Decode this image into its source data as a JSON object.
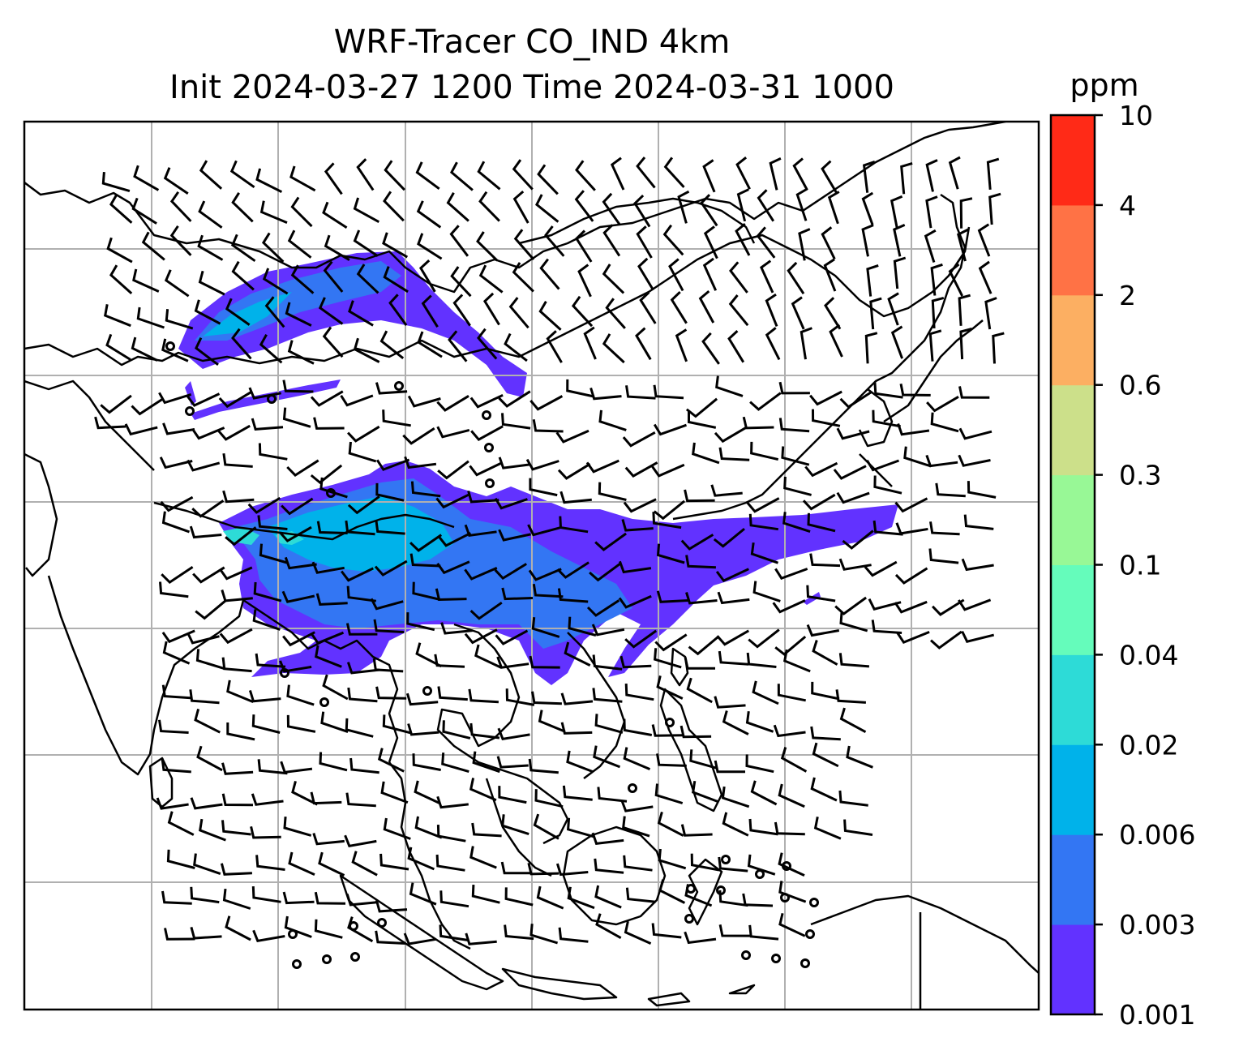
{
  "title": {
    "line1": "WRF-Tracer CO_IND 4km",
    "line2": "Init 2024-03-27 1200 Time 2024-03-31 1000"
  },
  "colorbar": {
    "unit_label": "ppm",
    "levels": [
      "0.001",
      "0.003",
      "0.006",
      "0.02",
      "0.04",
      "0.1",
      "0.3",
      "0.6",
      "2",
      "4",
      "10"
    ],
    "colors": [
      "#6232FF",
      "#3376F3",
      "#00B2EA",
      "#2DDBD7",
      "#65FCBB",
      "#98F896",
      "#CCE08A",
      "#FCAF62",
      "#FF7245",
      "#FF2A17"
    ]
  },
  "map": {
    "plume_colors": {
      "outer": "#6232FF",
      "mid": "#3376F3",
      "inner": "#00B2EA",
      "core": "#2DDBD7"
    },
    "gridline_color": "#b0b0b0",
    "coastline_color": "#000000",
    "calm_wind_markers": "circle"
  }
}
